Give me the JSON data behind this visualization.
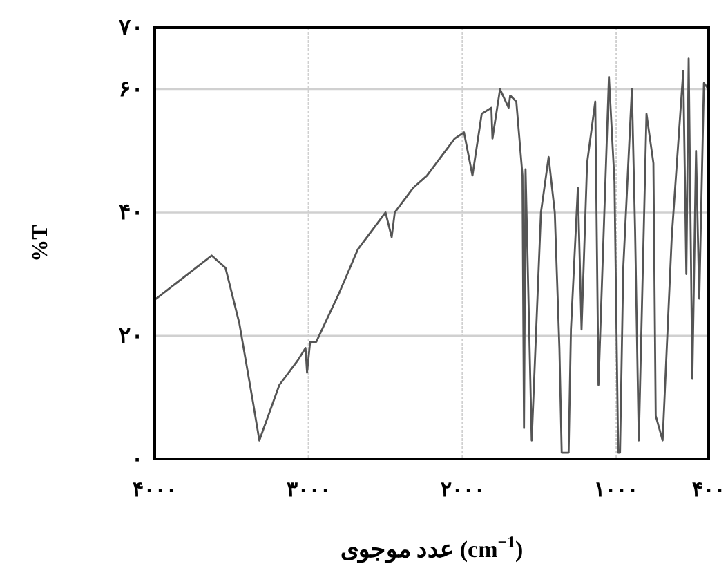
{
  "chart_data": {
    "type": "line",
    "xlabel": "عدد موجوی (cm$^{−1}$)",
    "ylabel": "%T",
    "xlim": [
      4000,
      400
    ],
    "ylim": [
      0,
      70
    ],
    "xticks": [
      {
        "value": 4000,
        "label": "۴۰۰۰"
      },
      {
        "value": 3000,
        "label": "۳۰۰۰"
      },
      {
        "value": 2000,
        "label": "۲۰۰۰"
      },
      {
        "value": 1000,
        "label": "۱۰۰۰"
      },
      {
        "value": 400,
        "label": "۴۰۰"
      }
    ],
    "yticks": [
      {
        "value": 0,
        "label": "۰"
      },
      {
        "value": 20,
        "label": "۲۰"
      },
      {
        "value": 40,
        "label": "۴۰"
      },
      {
        "value": 60,
        "label": "۶۰"
      },
      {
        "value": 70,
        "label": "۷۰"
      }
    ],
    "grid": true,
    "marker": "none",
    "line_style": "solid",
    "series": [
      {
        "color": "#555555",
        "x": [
          3990,
          3630,
          3540,
          3450,
          3360,
          3320,
          3190,
          3070,
          3020,
          3010,
          2990,
          2950,
          2800,
          2680,
          2500,
          2460,
          2440,
          2380,
          2320,
          2230,
          2050,
          1990,
          1935,
          1875,
          1812,
          1805,
          1756,
          1700,
          1690,
          1650,
          1610,
          1600,
          1590,
          1550,
          1490,
          1440,
          1400,
          1370,
          1355,
          1310,
          1295,
          1250,
          1226,
          1190,
          1137,
          1116,
          1048,
          1012,
          988,
          976,
          955,
          899,
          878,
          854,
          804,
          759,
          744,
          699,
          640,
          565,
          545,
          530,
          506,
          482,
          461,
          431,
          400
        ],
        "values": [
          26,
          33,
          31,
          22,
          9,
          3,
          12,
          16,
          18,
          14,
          19,
          19,
          27,
          34,
          40,
          36,
          40,
          42,
          44,
          46,
          52,
          53,
          46,
          56,
          57,
          52,
          60,
          57,
          59,
          58,
          46,
          5,
          47,
          3,
          40,
          49,
          40,
          18,
          1,
          1,
          21,
          44,
          21,
          48,
          58,
          12,
          62,
          45,
          1,
          1,
          31,
          60,
          37,
          3,
          56,
          48,
          7,
          3,
          36,
          63,
          30,
          65,
          13,
          50,
          26,
          61,
          60
        ]
      }
    ]
  }
}
